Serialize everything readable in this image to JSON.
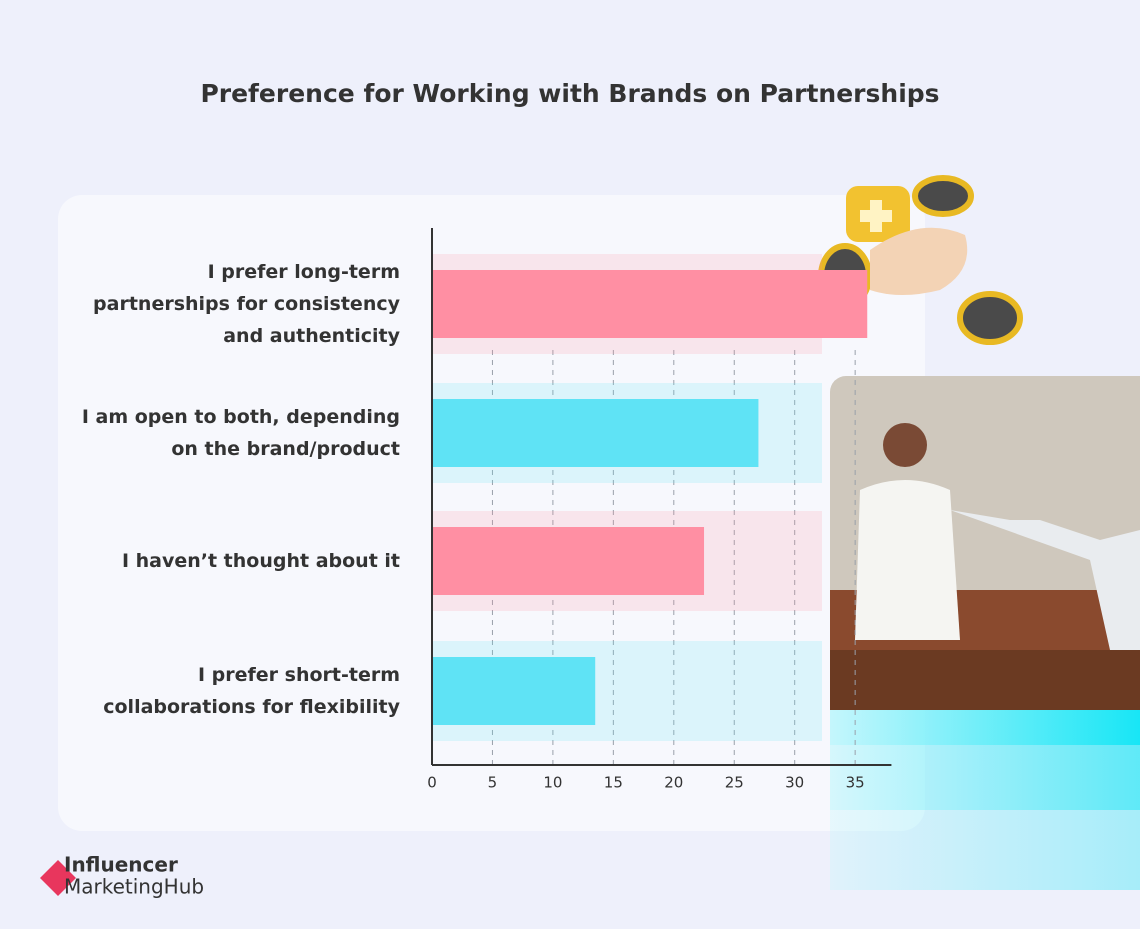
{
  "chart_data": {
    "type": "hbar",
    "title": "Preference for Working with Brands on Partnerships",
    "categories": [
      "I prefer long-term partnerships for consistency and authenticity",
      "I am open to both, depending on the brand/product",
      "I haven’t thought about it",
      "I prefer short-term collaborations for flexibility"
    ],
    "values": [
      36,
      27,
      22.5,
      13.5
    ],
    "colors": [
      "#ff8fa3",
      "#5fe3f5",
      "#ff8fa3",
      "#5fe3f5"
    ],
    "xlim": [
      0,
      38
    ],
    "xticks": [
      0,
      5,
      10,
      15,
      20,
      25,
      30,
      35
    ],
    "grid": true
  },
  "brand": {
    "line1": "Influencer",
    "line2": "MarketingHub"
  }
}
